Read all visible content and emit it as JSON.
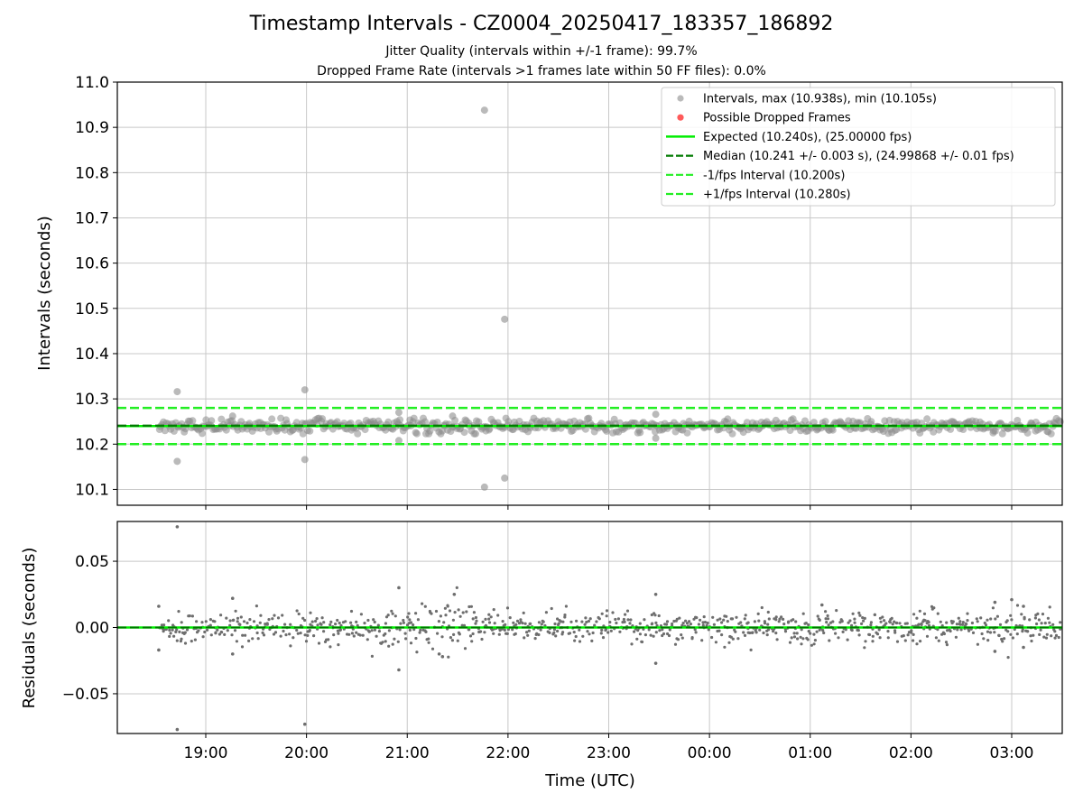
{
  "title": "Timestamp Intervals - CZ0004_20250417_183357_186892",
  "subtitle_1": "Jitter Quality (intervals within +/-1 frame): 99.7%",
  "subtitle_2": "Dropped Frame Rate (intervals >1 frames late within 50 FF files): 0.0%",
  "colors": {
    "intervals": "#8c8c8c",
    "dropped": "#ff5a5a",
    "expected": "#00ee00",
    "median": "#007a00",
    "bound": "#22ee22",
    "residuals": "#6e6e6e",
    "grid": "#c8c8c8"
  },
  "chart_data": [
    {
      "type": "scatter",
      "panel": "top",
      "xlabel": "",
      "ylabel": "Intervals (seconds)",
      "ylim": [
        10.065,
        11.0
      ],
      "yticks": [
        "10.1",
        "10.2",
        "10.3",
        "10.4",
        "10.5",
        "10.6",
        "10.7",
        "10.8",
        "10.9",
        "11.0"
      ],
      "ytick_values": [
        10.1,
        10.2,
        10.3,
        10.4,
        10.5,
        10.6,
        10.7,
        10.8,
        10.9,
        11.0
      ],
      "xlim_hours_utc": [
        "18:08",
        "03:30"
      ],
      "grid": true,
      "legend_position": "top-right",
      "legend": [
        "Intervals, max (10.938s), min (10.105s)",
        "Possible Dropped Frames",
        "Expected (10.240s), (25.00000 fps)",
        "Median (10.241 +/- 0.003 s), (24.99868 +/- 0.01 fps)",
        "-1/fps Interval (10.200s)",
        "+1/fps Interval (10.280s)"
      ],
      "reference_lines": {
        "expected": 10.24,
        "median": 10.241,
        "minus_one_frame": 10.2,
        "plus_one_frame": 10.28
      },
      "series": [
        {
          "name": "Intervals, max (10.938s), min (10.105s)",
          "band": {
            "start": "18:32",
            "end": "03:30",
            "center": 10.24,
            "typical_spread": 0.008
          },
          "outliers": [
            {
              "x": "18:43",
              "y": 10.316
            },
            {
              "x": "18:43",
              "y": 10.162
            },
            {
              "x": "19:59",
              "y": 10.32
            },
            {
              "x": "19:59",
              "y": 10.166
            },
            {
              "x": "20:55",
              "y": 10.27
            },
            {
              "x": "20:55",
              "y": 10.208
            },
            {
              "x": "21:46",
              "y": 10.938
            },
            {
              "x": "21:46",
              "y": 10.105
            },
            {
              "x": "21:58",
              "y": 10.476
            },
            {
              "x": "21:58",
              "y": 10.125
            },
            {
              "x": "23:28",
              "y": 10.266
            },
            {
              "x": "23:28",
              "y": 10.213
            },
            {
              "x": "19:16",
              "y": 10.262
            },
            {
              "x": "21:27",
              "y": 10.262
            }
          ]
        },
        {
          "name": "Possible Dropped Frames",
          "points": []
        }
      ]
    },
    {
      "type": "scatter",
      "panel": "bottom",
      "xlabel": "Time (UTC)",
      "ylabel": "Residuals (seconds)",
      "ylim": [
        -0.08,
        0.08
      ],
      "yticks": [
        "−0.05",
        "0.00",
        "0.05"
      ],
      "ytick_values": [
        -0.05,
        0.0,
        0.05
      ],
      "xticks": [
        "19:00",
        "20:00",
        "21:00",
        "22:00",
        "23:00",
        "00:00",
        "01:00",
        "02:00",
        "03:00"
      ],
      "grid": true,
      "reference_lines": {
        "median": 0.0,
        "expected": 0.0
      },
      "series": [
        {
          "name": "residuals",
          "band": {
            "start": "18:32",
            "end": "03:30",
            "center": 0.0,
            "typical_spread": 0.006
          },
          "outliers": [
            {
              "x": "18:43",
              "y": 0.076
            },
            {
              "x": "18:43",
              "y": -0.077
            },
            {
              "x": "19:59",
              "y": -0.073
            },
            {
              "x": "20:55",
              "y": 0.03
            },
            {
              "x": "20:55",
              "y": -0.032
            },
            {
              "x": "21:28",
              "y": 0.025
            },
            {
              "x": "23:28",
              "y": 0.025
            },
            {
              "x": "23:28",
              "y": -0.027
            },
            {
              "x": "19:16",
              "y": 0.022
            },
            {
              "x": "19:16",
              "y": -0.02
            },
            {
              "x": "18:32",
              "y": 0.016
            },
            {
              "x": "18:32",
              "y": -0.017
            },
            {
              "x": "21:19",
              "y": -0.02
            },
            {
              "x": "21:21",
              "y": -0.022
            },
            {
              "x": "01:07",
              "y": 0.017
            },
            {
              "x": "02:50",
              "y": 0.019
            },
            {
              "x": "02:50",
              "y": -0.018
            },
            {
              "x": "03:00",
              "y": 0.021
            },
            {
              "x": "03:07",
              "y": 0.016
            },
            {
              "x": "03:07",
              "y": -0.015
            }
          ]
        }
      ]
    }
  ]
}
